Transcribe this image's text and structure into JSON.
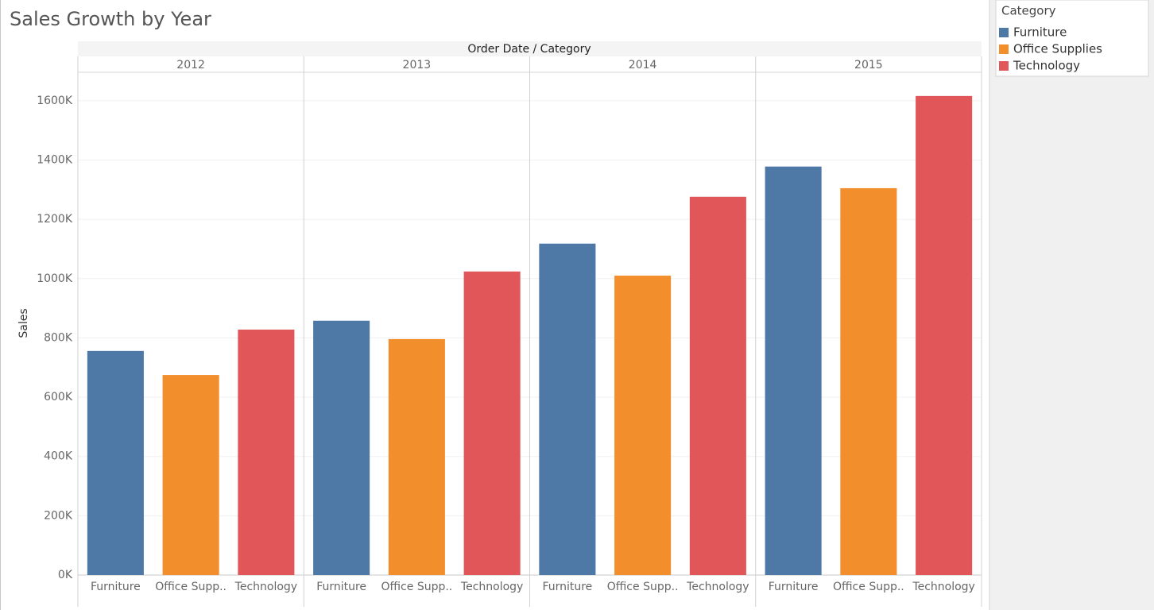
{
  "chart_data": {
    "type": "bar",
    "title": "Sales Growth by Year",
    "header": "Order Date / Category",
    "y_label": "Sales",
    "categories": [
      "2012",
      "2013",
      "2014",
      "2015"
    ],
    "x_labels": [
      "Furniture",
      "Office Supp..",
      "Technology"
    ],
    "legend_title": "Category",
    "legend_position": "top-right",
    "grid": true,
    "series": [
      {
        "name": "Furniture",
        "color": "#4e79a7",
        "values": [
          756000,
          858000,
          1118000,
          1378000
        ]
      },
      {
        "name": "Office Supplies",
        "color": "#f28e2b",
        "values": [
          675000,
          796000,
          1010000,
          1305000
        ]
      },
      {
        "name": "Technology",
        "color": "#e15759",
        "values": [
          828000,
          1024000,
          1276000,
          1616000
        ]
      }
    ],
    "ylim": [
      0,
      1696000
    ],
    "yticks": [
      {
        "value": 0,
        "label": "0K"
      },
      {
        "value": 200000,
        "label": "200K"
      },
      {
        "value": 400000,
        "label": "400K"
      },
      {
        "value": 600000,
        "label": "600K"
      },
      {
        "value": 800000,
        "label": "800K"
      },
      {
        "value": 1000000,
        "label": "1000K"
      },
      {
        "value": 1200000,
        "label": "1200K"
      },
      {
        "value": 1400000,
        "label": "1400K"
      },
      {
        "value": 1600000,
        "label": "1600K"
      }
    ]
  }
}
